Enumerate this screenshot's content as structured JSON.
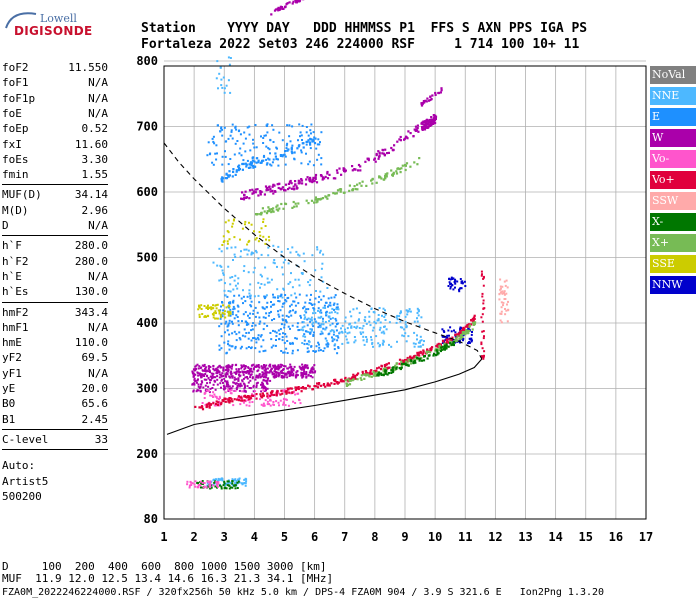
{
  "logo": {
    "line1": "Lowell",
    "line2": "DIGISONDE"
  },
  "header": {
    "row1": "Station    YYYY DAY   DDD HHMMSS P1  FFS S AXN PPS IGA PS",
    "row2": "Fortaleza 2022 Set03 246 224000 RSF     1 714 100 10+ 11"
  },
  "params": {
    "group1": [
      {
        "label": "foF2",
        "value": "11.550"
      },
      {
        "label": "foF1",
        "value": "N/A"
      },
      {
        "label": "foF1p",
        "value": "N/A"
      },
      {
        "label": "foE",
        "value": "N/A"
      },
      {
        "label": "foEp",
        "value": "0.52"
      },
      {
        "label": "fxI",
        "value": "11.60"
      },
      {
        "label": "foEs",
        "value": "3.30"
      },
      {
        "label": "fmin",
        "value": "1.55"
      }
    ],
    "group2": [
      {
        "label": "MUF(D)",
        "value": "34.14"
      },
      {
        "label": "M(D)",
        "value": "2.96"
      },
      {
        "label": "D",
        "value": "N/A"
      }
    ],
    "group3": [
      {
        "label": "h`F",
        "value": "280.0"
      },
      {
        "label": "h`F2",
        "value": "280.0"
      },
      {
        "label": "h`E",
        "value": "N/A"
      },
      {
        "label": "h`Es",
        "value": "130.0"
      }
    ],
    "group4": [
      {
        "label": "hmF2",
        "value": "343.4"
      },
      {
        "label": "hmF1",
        "value": "N/A"
      },
      {
        "label": "hmE",
        "value": "110.0"
      },
      {
        "label": "yF2",
        "value": "69.5"
      },
      {
        "label": "yF1",
        "value": "N/A"
      },
      {
        "label": "yE",
        "value": "20.0"
      },
      {
        "label": "B0",
        "value": "65.6"
      },
      {
        "label": "B1",
        "value": "2.45"
      }
    ],
    "group5": [
      {
        "label": "C-level",
        "value": "33"
      }
    ],
    "auto": [
      "Auto:",
      "Artist5",
      "500200"
    ]
  },
  "legend": [
    {
      "label": "NoVal",
      "color": "#808080"
    },
    {
      "label": "NNE",
      "color": "#4db8ff"
    },
    {
      "label": "E",
      "color": "#1e90ff"
    },
    {
      "label": "W",
      "color": "#aa00aa"
    },
    {
      "label": "Vo-",
      "color": "#ff55cc"
    },
    {
      "label": "Vo+",
      "color": "#e0003c"
    },
    {
      "label": "SSW",
      "color": "#ffaaaa"
    },
    {
      "label": "X-",
      "color": "#007700"
    },
    {
      "label": "X+",
      "color": "#77bb55"
    },
    {
      "label": "SSE",
      "color": "#cccc00"
    },
    {
      "label": "NNW",
      "color": "#0000cc"
    }
  ],
  "footer": {
    "line1": "D     100  200  400  600  800 1000 1500 3000 [km]",
    "line2": "MUF  11.9 12.0 12.5 13.4 14.6 16.3 21.3 34.1 [MHz]",
    "line3": "FZA0M_2022246224000.RSF / 320fx256h 50 kHz 5.0 km / DPS-4 FZA0M 904 / 3.9 S 321.6 E   Ion2Png 1.3.20"
  },
  "chart_data": {
    "type": "scatter",
    "xlim": [
      1,
      17
    ],
    "ylim": [
      80,
      900
    ],
    "xticks": [
      1,
      2,
      3,
      4,
      5,
      6,
      7,
      8,
      9,
      10,
      11,
      12,
      13,
      14,
      15,
      16,
      17
    ],
    "yticks": [
      80,
      200,
      300,
      400,
      500,
      600,
      700,
      800,
      900
    ],
    "grid": true,
    "clusters": [
      {
        "color": "#aa00aa",
        "x0": 1.9,
        "x1": 6.0,
        "y0": 318,
        "y1": 338,
        "n": 420
      },
      {
        "color": "#aa00aa",
        "x0": 1.9,
        "x1": 4.5,
        "y0": 296,
        "y1": 318,
        "n": 160
      },
      {
        "color": "#ff55cc",
        "x0": 2.2,
        "x1": 5.5,
        "y0": 275,
        "y1": 300,
        "n": 120
      },
      {
        "color": "#4db8ff",
        "x0": 2.4,
        "x1": 3.7,
        "y0": 143,
        "y1": 158,
        "n": 70
      },
      {
        "color": "#007700",
        "x0": 2.0,
        "x1": 3.5,
        "y0": 138,
        "y1": 152,
        "n": 60
      },
      {
        "color": "#ff55cc",
        "x0": 1.7,
        "x1": 2.8,
        "y0": 140,
        "y1": 152,
        "n": 40
      },
      {
        "color": "#1e90ff",
        "x0": 2.8,
        "x1": 6.8,
        "y0": 355,
        "y1": 445,
        "n": 380
      },
      {
        "color": "#4db8ff",
        "x0": 5.5,
        "x1": 9.6,
        "y0": 365,
        "y1": 425,
        "n": 220
      },
      {
        "color": "#cccc00",
        "x0": 2.1,
        "x1": 3.2,
        "y0": 408,
        "y1": 430,
        "n": 60
      },
      {
        "color": "#cccc00",
        "x0": 2.8,
        "x1": 4.5,
        "y0": 520,
        "y1": 560,
        "n": 40
      },
      {
        "color": "#4db8ff",
        "x0": 2.6,
        "x1": 6.4,
        "y0": 440,
        "y1": 520,
        "n": 130
      },
      {
        "color": "#1e90ff",
        "x0": 2.4,
        "x1": 6.2,
        "y0": 640,
        "y1": 705,
        "n": 160
      },
      {
        "color": "#4db8ff",
        "x0": 2.7,
        "x1": 3.2,
        "y0": 750,
        "y1": 810,
        "n": 18
      },
      {
        "color": "#0000cc",
        "x0": 10.4,
        "x1": 11.0,
        "y0": 450,
        "y1": 472,
        "n": 35
      },
      {
        "color": "#0000cc",
        "x0": 10.2,
        "x1": 11.2,
        "y0": 370,
        "y1": 395,
        "n": 70
      },
      {
        "color": "#ffaaaa",
        "x0": 12.1,
        "x1": 12.4,
        "y0": 400,
        "y1": 470,
        "n": 40
      },
      {
        "color": "#e0003c",
        "x0": 11.5,
        "x1": 11.6,
        "y0": 345,
        "y1": 485,
        "n": 30
      }
    ],
    "traces": [
      {
        "color": "#e0003c",
        "points": [
          [
            2.0,
            270
          ],
          [
            3.0,
            283
          ],
          [
            4.0,
            290
          ],
          [
            5.0,
            297
          ],
          [
            6.0,
            305
          ],
          [
            7.0,
            315
          ],
          [
            8.0,
            330
          ],
          [
            9.0,
            345
          ],
          [
            10.0,
            365
          ],
          [
            10.8,
            385
          ],
          [
            11.3,
            410
          ]
        ],
        "spread": 8,
        "n": 320
      },
      {
        "color": "#77bb55",
        "points": [
          [
            7.0,
            310
          ],
          [
            8.0,
            325
          ],
          [
            9.0,
            340
          ],
          [
            10.0,
            360
          ],
          [
            10.8,
            380
          ],
          [
            11.3,
            400
          ]
        ],
        "spread": 10,
        "n": 140
      },
      {
        "color": "#007700",
        "points": [
          [
            8.0,
            320
          ],
          [
            9.0,
            338
          ],
          [
            10.0,
            356
          ],
          [
            10.6,
            372
          ]
        ],
        "spread": 8,
        "n": 80
      },
      {
        "color": "#aa00aa",
        "points": [
          [
            3.5,
            595
          ],
          [
            5.5,
            615
          ],
          [
            7.5,
            640
          ],
          [
            9.5,
            700
          ],
          [
            10.0,
            715
          ]
        ],
        "spread": 14,
        "n": 260
      },
      {
        "color": "#77bb55",
        "points": [
          [
            4.0,
            570
          ],
          [
            6.0,
            590
          ],
          [
            8.0,
            620
          ],
          [
            9.5,
            650
          ]
        ],
        "spread": 10,
        "n": 120
      },
      {
        "color": "#aa00aa",
        "points": [
          [
            4.5,
            875
          ],
          [
            5.2,
            890
          ],
          [
            5.6,
            898
          ]
        ],
        "spread": 6,
        "n": 40
      },
      {
        "color": "#aa00aa",
        "points": [
          [
            9.5,
            735
          ],
          [
            10.2,
            758
          ]
        ],
        "spread": 6,
        "n": 25
      },
      {
        "color": "#1e90ff",
        "points": [
          [
            2.8,
            620
          ],
          [
            3.6,
            640
          ],
          [
            5.0,
            660
          ],
          [
            6.0,
            680
          ]
        ],
        "spread": 12,
        "n": 80
      }
    ],
    "profile_solid": [
      [
        1.1,
        230
      ],
      [
        2.0,
        245
      ],
      [
        3.0,
        253
      ],
      [
        4.0,
        260
      ],
      [
        5.0,
        267
      ],
      [
        6.0,
        274
      ],
      [
        7.0,
        282
      ],
      [
        8.0,
        290
      ],
      [
        9.0,
        298
      ],
      [
        10.0,
        310
      ],
      [
        10.8,
        322
      ],
      [
        11.3,
        332
      ],
      [
        11.55,
        345
      ]
    ],
    "profile_dashed": [
      [
        1.0,
        675
      ],
      [
        1.5,
        645
      ],
      [
        2.0,
        620
      ],
      [
        3.0,
        575
      ],
      [
        4.0,
        535
      ],
      [
        5.0,
        500
      ],
      [
        6.0,
        470
      ],
      [
        7.0,
        445
      ],
      [
        8.0,
        422
      ],
      [
        9.0,
        402
      ],
      [
        10.0,
        385
      ],
      [
        10.8,
        372
      ],
      [
        11.4,
        358
      ],
      [
        11.55,
        345
      ]
    ]
  }
}
